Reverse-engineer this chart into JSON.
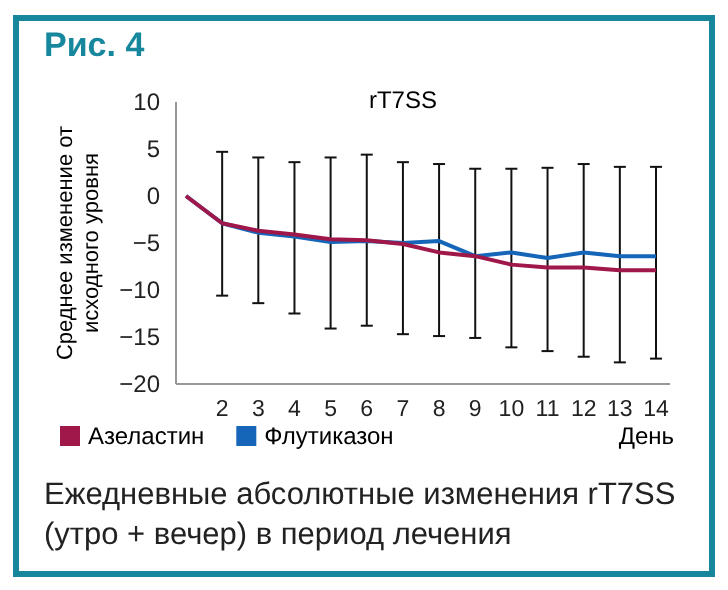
{
  "chart_data": {
    "type": "line",
    "title": "Рис. 4",
    "subtitle": "rT7SS",
    "xlabel": "День",
    "ylabel": "Среднее изменение от исходного уровня",
    "categories": [
      null,
      "2",
      "3",
      "4",
      "5",
      "6",
      "7",
      "8",
      "9",
      "10",
      "11",
      "12",
      "13",
      "14"
    ],
    "series": [
      {
        "name": "Азеластин",
        "color": "#a0174a",
        "values": [
          0,
          -2.9,
          -3.7,
          -4.1,
          -4.6,
          -4.7,
          -5.1,
          -6.0,
          -6.4,
          -7.3,
          -7.6,
          -7.6,
          -7.9,
          -7.9
        ],
        "errors": [
          null,
          [
            -10.6,
            4.7
          ],
          [
            -11.4,
            4.1
          ],
          [
            -12.5,
            3.6
          ],
          [
            -14.1,
            4.1
          ],
          [
            -13.8,
            4.4
          ],
          [
            -14.7,
            3.6
          ],
          [
            -14.9,
            3.4
          ],
          [
            -15.1,
            2.9
          ],
          [
            -16.1,
            2.9
          ],
          [
            -16.5,
            3.0
          ],
          [
            -17.1,
            3.4
          ],
          [
            -17.7,
            3.1
          ],
          [
            -17.3,
            3.1
          ]
        ]
      },
      {
        "name": "Флутиказон",
        "color": "#1565b8",
        "values": [
          0,
          -2.9,
          -3.9,
          -4.3,
          -4.9,
          -4.8,
          -5.0,
          -4.8,
          -6.4,
          -6.0,
          -6.6,
          -6.0,
          -6.4,
          -6.4
        ]
      }
    ],
    "ylim": [
      -20,
      10
    ],
    "yticks": [
      10,
      5,
      0,
      {
        "value": -5,
        "label": "−5"
      },
      {
        "value": -10,
        "label": "−10"
      },
      {
        "value": -15,
        "label": "−15"
      },
      {
        "value": -20,
        "label": "−20"
      }
    ],
    "legend": "bottom",
    "grid": false,
    "marker": "none",
    "line_style": "solid",
    "annotations": [
      "Ежедневные абсолютные изменения rT7SS (утро + вечер) в период лечения"
    ]
  }
}
